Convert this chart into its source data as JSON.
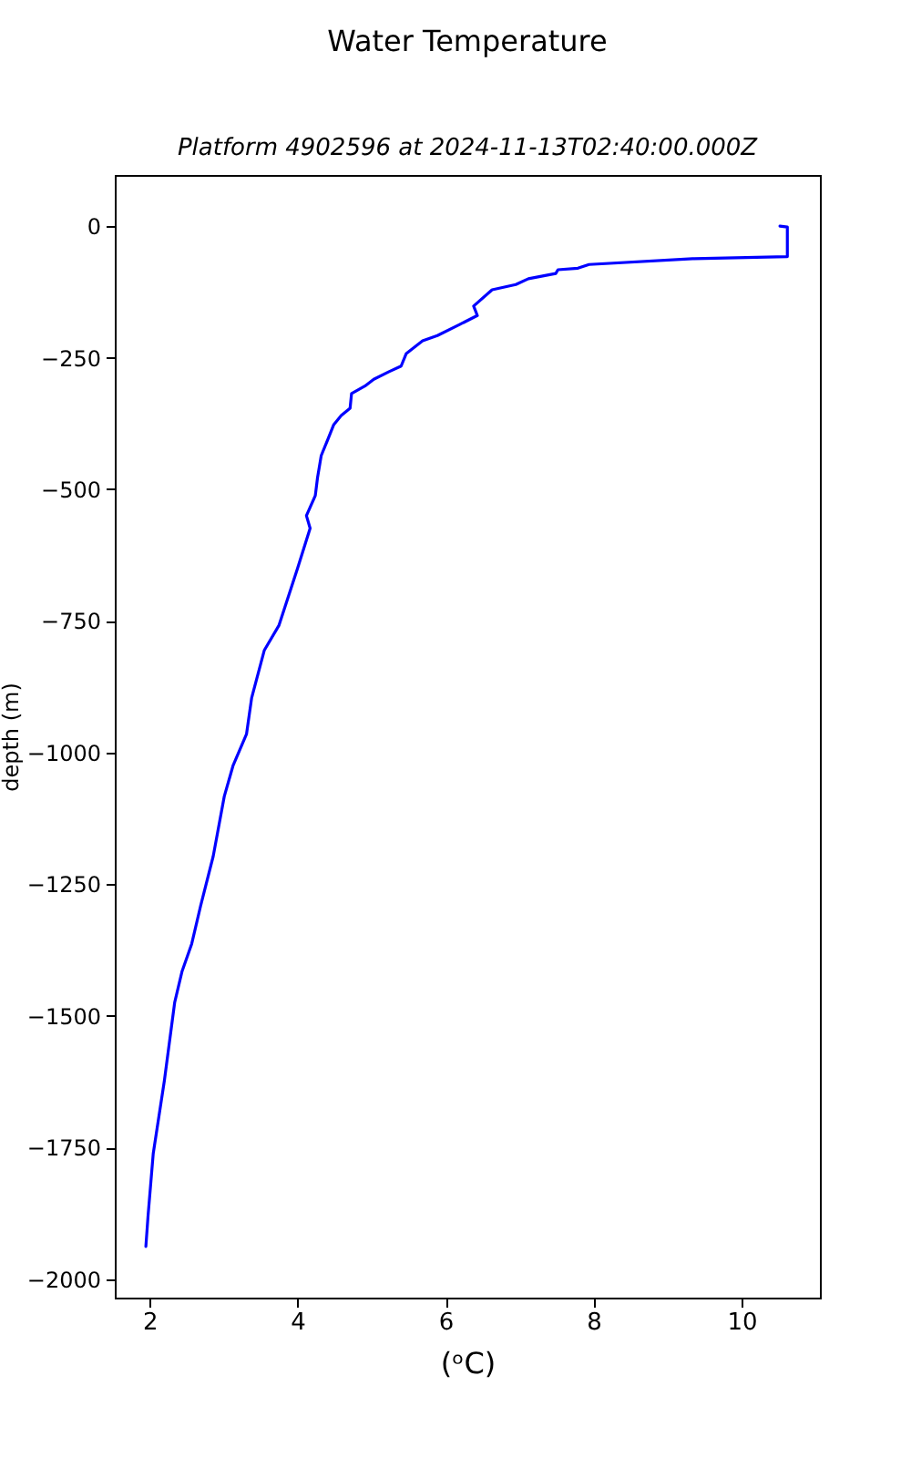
{
  "chart_data": {
    "type": "line",
    "title": "Water Temperature",
    "subtitle": "Platform 4902596 at 2024-11-13T02:40:00.000Z",
    "xlabel": "(ᵒC)",
    "ylabel": "depth (m)",
    "x": [
      10.52,
      10.62,
      10.62,
      9.34,
      7.94,
      7.79,
      7.52,
      7.49,
      7.12,
      6.95,
      6.63,
      6.38,
      6.43,
      6.19,
      5.89,
      5.69,
      5.47,
      5.4,
      5.23,
      5.03,
      4.91,
      4.73,
      4.71,
      4.59,
      4.49,
      4.41,
      4.32,
      4.27,
      4.24,
      4.12,
      4.17,
      4.0,
      3.75,
      3.55,
      3.38,
      3.31,
      3.13,
      3.01,
      2.86,
      2.69,
      2.57,
      2.44,
      2.34,
      2.2,
      2.05,
      1.98,
      1.95
    ],
    "values": [
      0,
      -2,
      -58,
      -62,
      -73,
      -80,
      -83,
      -90,
      -100,
      -111,
      -121,
      -152,
      -170,
      -187,
      -208,
      -218,
      -242,
      -266,
      -277,
      -291,
      -304,
      -318,
      -346,
      -360,
      -377,
      -405,
      -436,
      -478,
      -512,
      -550,
      -574,
      -650,
      -758,
      -806,
      -896,
      -965,
      -1024,
      -1083,
      -1197,
      -1291,
      -1363,
      -1415,
      -1474,
      -1623,
      -1761,
      -1879,
      -1938
    ],
    "color": "#0000ff",
    "line_style": "solid",
    "xlim": [
      1.53,
      11.06
    ],
    "xticks": [
      2,
      4,
      6,
      8,
      10
    ],
    "ylim": [
      -2035,
      97
    ],
    "yticks": [
      -2000,
      -1750,
      -1500,
      -1250,
      -1000,
      -750,
      -500,
      -250,
      0
    ]
  }
}
